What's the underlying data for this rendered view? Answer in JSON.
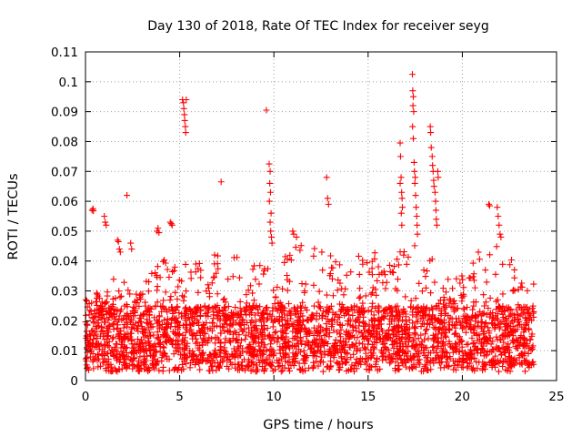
{
  "chart_data": {
    "type": "scatter",
    "title": "Day 130 of 2018, Rate Of TEC Index for receiver seyg",
    "xlabel": "GPS time / hours",
    "ylabel": "ROTI / TECUs",
    "xlim": [
      0,
      25
    ],
    "ylim": [
      0,
      0.11
    ],
    "xticks": [
      "0",
      "5",
      "10",
      "15",
      "20",
      "25"
    ],
    "yticks": [
      "0",
      "0.01",
      "0.02",
      "0.03",
      "0.04",
      "0.05",
      "0.06",
      "0.07",
      "0.08",
      "0.09",
      "0.1",
      "0.11"
    ],
    "grid": true,
    "marker": "+",
    "color": "#ff0000",
    "series": [
      {
        "name": "",
        "points": [
          [
            0.35,
            0.057
          ],
          [
            0.4,
            0.0575
          ],
          [
            0.42,
            0.0568
          ],
          [
            1.0,
            0.055
          ],
          [
            1.05,
            0.053
          ],
          [
            1.1,
            0.052
          ],
          [
            1.7,
            0.047
          ],
          [
            1.75,
            0.0465
          ],
          [
            1.8,
            0.044
          ],
          [
            1.85,
            0.043
          ],
          [
            2.2,
            0.062
          ],
          [
            2.4,
            0.046
          ],
          [
            2.45,
            0.044
          ],
          [
            3.8,
            0.05
          ],
          [
            3.85,
            0.051
          ],
          [
            3.9,
            0.0495
          ],
          [
            4.5,
            0.053
          ],
          [
            4.55,
            0.0525
          ],
          [
            4.6,
            0.052
          ],
          [
            5.15,
            0.094
          ],
          [
            5.2,
            0.093
          ],
          [
            5.22,
            0.091
          ],
          [
            5.25,
            0.089
          ],
          [
            5.27,
            0.087
          ],
          [
            5.3,
            0.085
          ],
          [
            5.32,
            0.083
          ],
          [
            5.35,
            0.094
          ],
          [
            7.2,
            0.0665
          ],
          [
            9.6,
            0.0905
          ],
          [
            9.75,
            0.0725
          ],
          [
            9.8,
            0.07
          ],
          [
            9.78,
            0.066
          ],
          [
            9.82,
            0.063
          ],
          [
            9.76,
            0.06
          ],
          [
            9.85,
            0.056
          ],
          [
            9.8,
            0.053
          ],
          [
            9.83,
            0.05
          ],
          [
            9.87,
            0.048
          ],
          [
            9.9,
            0.046
          ],
          [
            11.0,
            0.05
          ],
          [
            11.05,
            0.049
          ],
          [
            11.2,
            0.048
          ],
          [
            12.8,
            0.068
          ],
          [
            12.85,
            0.061
          ],
          [
            12.9,
            0.059
          ],
          [
            16.7,
            0.0795
          ],
          [
            16.72,
            0.075
          ],
          [
            16.75,
            0.068
          ],
          [
            16.7,
            0.066
          ],
          [
            16.78,
            0.063
          ],
          [
            16.8,
            0.061
          ],
          [
            16.82,
            0.058
          ],
          [
            16.76,
            0.056
          ],
          [
            16.79,
            0.052
          ],
          [
            17.35,
            0.1025
          ],
          [
            17.37,
            0.097
          ],
          [
            17.4,
            0.095
          ],
          [
            17.38,
            0.092
          ],
          [
            17.42,
            0.09
          ],
          [
            17.36,
            0.085
          ],
          [
            17.4,
            0.081
          ],
          [
            17.44,
            0.073
          ],
          [
            17.46,
            0.07
          ],
          [
            17.5,
            0.068
          ],
          [
            17.48,
            0.066
          ],
          [
            17.52,
            0.062
          ],
          [
            17.55,
            0.058
          ],
          [
            17.58,
            0.055
          ],
          [
            17.6,
            0.052
          ],
          [
            17.62,
            0.049
          ],
          [
            18.3,
            0.085
          ],
          [
            18.32,
            0.083
          ],
          [
            18.35,
            0.078
          ],
          [
            18.4,
            0.075
          ],
          [
            18.42,
            0.072
          ],
          [
            18.45,
            0.07
          ],
          [
            18.48,
            0.067
          ],
          [
            18.5,
            0.065
          ],
          [
            18.55,
            0.063
          ],
          [
            18.58,
            0.06
          ],
          [
            18.6,
            0.057
          ],
          [
            18.62,
            0.054
          ],
          [
            18.65,
            0.052
          ],
          [
            18.7,
            0.07
          ],
          [
            18.72,
            0.068
          ],
          [
            21.4,
            0.059
          ],
          [
            21.45,
            0.0585
          ],
          [
            21.85,
            0.058
          ],
          [
            21.9,
            0.055
          ],
          [
            21.95,
            0.052
          ],
          [
            22.0,
            0.049
          ],
          [
            22.05,
            0.048
          ]
        ]
      }
    ],
    "dense_band": {
      "description": "",
      "x_range": [
        0,
        23.8
      ],
      "points_per_hour": 120,
      "min": 0.003,
      "typical_low": 0.006,
      "typical_high": 0.025,
      "upper_envelope": [
        [
          0,
          0.028
        ],
        [
          0.5,
          0.03
        ],
        [
          1.0,
          0.03
        ],
        [
          1.5,
          0.034
        ],
        [
          2.0,
          0.033
        ],
        [
          2.5,
          0.035
        ],
        [
          3.0,
          0.031
        ],
        [
          3.5,
          0.036
        ],
        [
          4.0,
          0.041
        ],
        [
          4.5,
          0.043
        ],
        [
          5.0,
          0.04
        ],
        [
          5.5,
          0.041
        ],
        [
          6.0,
          0.041
        ],
        [
          6.5,
          0.043
        ],
        [
          7.0,
          0.042
        ],
        [
          7.5,
          0.042
        ],
        [
          8.0,
          0.043
        ],
        [
          8.5,
          0.043
        ],
        [
          9.0,
          0.04
        ],
        [
          9.5,
          0.042
        ],
        [
          10.0,
          0.04
        ],
        [
          10.5,
          0.043
        ],
        [
          11.0,
          0.045
        ],
        [
          11.5,
          0.046
        ],
        [
          12.0,
          0.046
        ],
        [
          12.5,
          0.046
        ],
        [
          13.0,
          0.042
        ],
        [
          13.5,
          0.04
        ],
        [
          14.0,
          0.04
        ],
        [
          14.5,
          0.043
        ],
        [
          15.0,
          0.043
        ],
        [
          15.5,
          0.043
        ],
        [
          16.0,
          0.039
        ],
        [
          16.5,
          0.042
        ],
        [
          17.0,
          0.046
        ],
        [
          17.5,
          0.047
        ],
        [
          18.0,
          0.046
        ],
        [
          18.5,
          0.043
        ],
        [
          19.0,
          0.035
        ],
        [
          19.5,
          0.033
        ],
        [
          20.0,
          0.036
        ],
        [
          20.5,
          0.04
        ],
        [
          21.0,
          0.045
        ],
        [
          21.5,
          0.045
        ],
        [
          22.0,
          0.046
        ],
        [
          22.5,
          0.043
        ],
        [
          23.0,
          0.036
        ],
        [
          23.8,
          0.034
        ]
      ]
    }
  }
}
